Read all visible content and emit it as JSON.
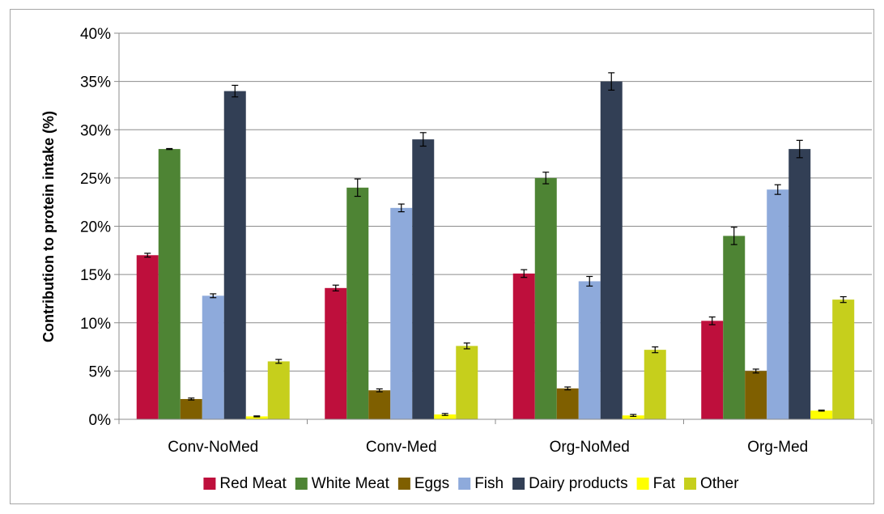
{
  "chart_data": {
    "type": "bar",
    "title": "",
    "xlabel": "",
    "ylabel": "Contribution to protein intake (%)",
    "ylim": [
      0,
      40
    ],
    "yticks": [
      "0%",
      "5%",
      "10%",
      "15%",
      "20%",
      "25%",
      "30%",
      "35%",
      "40%"
    ],
    "grid": true,
    "legend_position": "bottom",
    "categories": [
      "Conv-NoMed",
      "Conv-Med",
      "Org-NoMed",
      "Org-Med"
    ],
    "series": [
      {
        "name": "Red Meat",
        "color": "#be0f3c",
        "values": [
          17.0,
          13.6,
          15.1,
          10.2
        ],
        "errors": [
          0.2,
          0.3,
          0.4,
          0.4
        ]
      },
      {
        "name": "White Meat",
        "color": "#4e8434",
        "values": [
          28.0,
          24.0,
          25.0,
          19.0
        ],
        "errors": [
          0.05,
          0.9,
          0.6,
          0.9
        ]
      },
      {
        "name": "Eggs",
        "color": "#7f5f00",
        "values": [
          2.1,
          3.0,
          3.2,
          5.0
        ],
        "errors": [
          0.1,
          0.15,
          0.15,
          0.2
        ]
      },
      {
        "name": "Fish",
        "color": "#8eaadb",
        "values": [
          12.8,
          21.9,
          14.3,
          23.8
        ],
        "errors": [
          0.2,
          0.4,
          0.5,
          0.5
        ]
      },
      {
        "name": "Dairy products",
        "color": "#323f55",
        "values": [
          34.0,
          29.0,
          35.0,
          28.0
        ],
        "errors": [
          0.6,
          0.7,
          0.9,
          0.9
        ]
      },
      {
        "name": "Fat",
        "color": "#ffff00",
        "values": [
          0.3,
          0.5,
          0.4,
          0.9
        ],
        "errors": [
          0.05,
          0.1,
          0.1,
          0.05
        ]
      },
      {
        "name": "Other",
        "color": "#c6cf1c",
        "values": [
          6.0,
          7.6,
          7.2,
          12.4
        ],
        "errors": [
          0.2,
          0.3,
          0.3,
          0.3
        ]
      }
    ]
  }
}
